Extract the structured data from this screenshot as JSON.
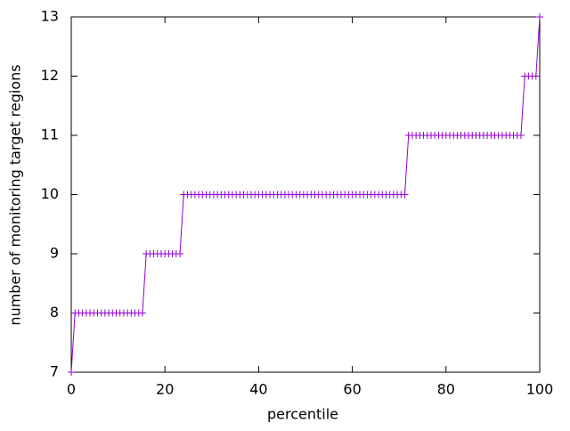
{
  "chart_data": {
    "type": "line",
    "xlabel": "percentile",
    "ylabel": "number of monitoring target regions",
    "xlim": [
      0,
      100
    ],
    "xticks": [
      0,
      20,
      40,
      60,
      80,
      100
    ],
    "ylim": [
      7,
      13
    ],
    "yticks": [
      7,
      8,
      9,
      10,
      11,
      12,
      13
    ],
    "series": [
      {
        "color": "#9400d3",
        "x": [
          0,
          0.8,
          1.6,
          2.4,
          3.2,
          4,
          4.8,
          5.6,
          6.4,
          7.2,
          8,
          8.8,
          9.6,
          10.4,
          11.2,
          12,
          12.8,
          13.6,
          14.4,
          15.2,
          16,
          16.8,
          17.6,
          18.4,
          19.2,
          20,
          20.8,
          21.6,
          22.4,
          23.2,
          24,
          24.8,
          25.6,
          26.4,
          27.2,
          28,
          28.8,
          29.6,
          30.4,
          31.2,
          32,
          32.8,
          33.6,
          34.4,
          35.2,
          36,
          36.8,
          37.6,
          38.4,
          39.2,
          40,
          40.8,
          41.6,
          42.4,
          43.2,
          44,
          44.8,
          45.6,
          46.4,
          47.2,
          48,
          48.8,
          49.6,
          50.4,
          51.2,
          52,
          52.8,
          53.6,
          54.4,
          55.2,
          56,
          56.8,
          57.6,
          58.4,
          59.2,
          60,
          60.8,
          61.6,
          62.4,
          63.2,
          64,
          64.8,
          65.6,
          66.4,
          67.2,
          68,
          68.8,
          69.6,
          70.4,
          71.2,
          72,
          72.8,
          73.6,
          74.4,
          75.2,
          76,
          76.8,
          77.6,
          78.4,
          79.2,
          80,
          80.8,
          81.6,
          82.4,
          83.2,
          84,
          84.8,
          85.6,
          86.4,
          87.2,
          88,
          88.8,
          89.6,
          90.4,
          91.2,
          92,
          92.8,
          93.6,
          94.4,
          95.2,
          96,
          96.8,
          97.6,
          98.4,
          99.2,
          100
        ],
        "values": [
          7,
          8,
          8,
          8,
          8,
          8,
          8,
          8,
          8,
          8,
          8,
          8,
          8,
          8,
          8,
          8,
          8,
          8,
          8,
          8,
          9,
          9,
          9,
          9,
          9,
          9,
          9,
          9,
          9,
          9,
          10,
          10,
          10,
          10,
          10,
          10,
          10,
          10,
          10,
          10,
          10,
          10,
          10,
          10,
          10,
          10,
          10,
          10,
          10,
          10,
          10,
          10,
          10,
          10,
          10,
          10,
          10,
          10,
          10,
          10,
          10,
          10,
          10,
          10,
          10,
          10,
          10,
          10,
          10,
          10,
          10,
          10,
          10,
          10,
          10,
          10,
          10,
          10,
          10,
          10,
          10,
          10,
          10,
          10,
          10,
          10,
          10,
          10,
          10,
          10,
          11,
          11,
          11,
          11,
          11,
          11,
          11,
          11,
          11,
          11,
          11,
          11,
          11,
          11,
          11,
          11,
          11,
          11,
          11,
          11,
          11,
          11,
          11,
          11,
          11,
          11,
          11,
          11,
          11,
          11,
          11,
          12,
          12,
          12,
          12,
          13
        ]
      }
    ]
  }
}
